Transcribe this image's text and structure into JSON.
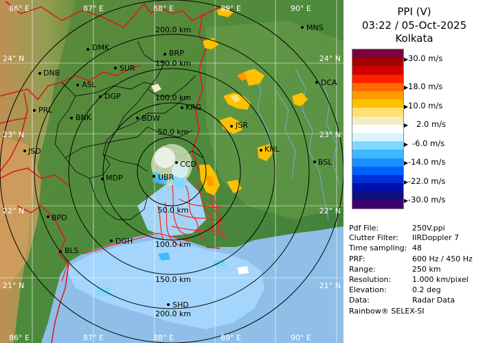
{
  "header": {
    "product": "PPI (V)",
    "datetime": "03:22 / 05-Oct-2025",
    "station": "Kolkata"
  },
  "legend": {
    "units": "m/s",
    "labels": [
      "30.0 m/s",
      "18.0 m/s",
      "10.0 m/s",
      "2.0 m/s",
      "-6.0 m/s",
      "-14.0 m/s",
      "-22.0 m/s",
      "-30.0 m/s"
    ],
    "colors": [
      "#7a0040",
      "#a00000",
      "#d00000",
      "#ff2000",
      "#ff6a00",
      "#ff9a00",
      "#ffc000",
      "#ffe070",
      "#f4ecc8",
      "#ffffff",
      "#d8f4ff",
      "#7fd8ff",
      "#40b8ff",
      "#1890ff",
      "#0060ff",
      "#0030d8",
      "#0010a8",
      "#101080",
      "#400070"
    ]
  },
  "info": [
    {
      "key": "Pdf File:",
      "value": "250V.ppi"
    },
    {
      "key": "Clutter Filter:",
      "value": "IIRDoppler 7"
    },
    {
      "key": "Time sampling:",
      "value": "48"
    },
    {
      "key": "PRF:",
      "value": "600 Hz / 450 Hz"
    },
    {
      "key": "Range:",
      "value": "250 km"
    },
    {
      "key": "Resolution:",
      "value": "1.000 km/pixel"
    },
    {
      "key": "Elevation:",
      "value": "0.2 deg"
    },
    {
      "key": "Data:",
      "value": "Radar Data"
    }
  ],
  "footer": "Rainbow® SELEX-SI",
  "map": {
    "lon_labels_top": [
      "86° E",
      "87° E",
      "88° E",
      "89° E",
      "90° E"
    ],
    "lon_labels_bottom": [
      "86° E",
      "87° E",
      "88° E",
      "89° E",
      "90° E"
    ],
    "lat_labels_left": [
      "24° N",
      "23° N",
      "22° N",
      "21° N"
    ],
    "lat_labels_right": [
      "24° N",
      "23° N",
      "22° N",
      "21° N"
    ],
    "range_rings_north": [
      "200.0 km",
      "150.0 km",
      "100.0 km",
      "50.0 km"
    ],
    "range_rings_south": [
      "50.0 km",
      "100.0 km",
      "150.0 km",
      "200.0 km"
    ],
    "stations": [
      "MNS",
      "DMK",
      "BRP",
      "DNB",
      "SUR",
      "ASL",
      "DGP",
      "KRG",
      "PRL",
      "BNK",
      "BDW",
      "JSR",
      "JSD",
      "KHL",
      "DCA",
      "BSL",
      "MDP",
      "CCD",
      "UBR",
      "BPD",
      "DGH",
      "BLS",
      "SHD"
    ]
  }
}
